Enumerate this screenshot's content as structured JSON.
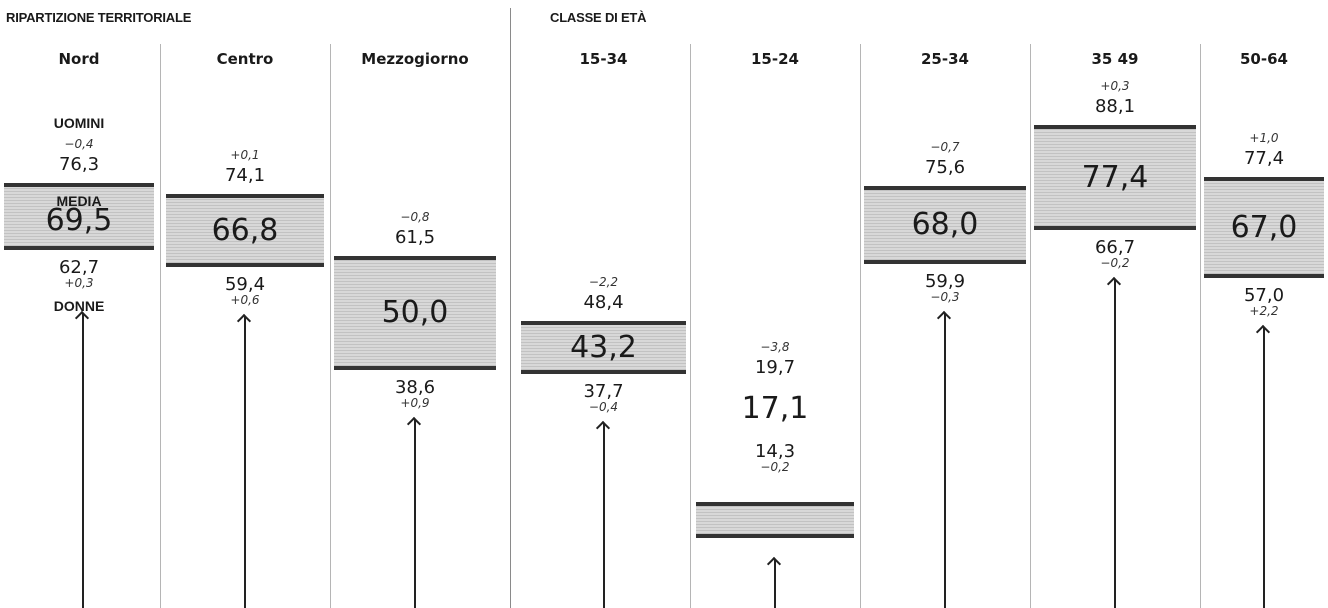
{
  "sections": {
    "territorial": "RIPARTIZIONE TERRITORIALE",
    "age": "CLASSE DI ETÀ"
  },
  "labels": {
    "men": "UOMINI",
    "average": "MEDIA",
    "women": "DONNE"
  },
  "colors": {
    "band_fill": "#d8d8d8",
    "band_edge": "#333333",
    "divider": "#b5b5b5"
  },
  "chart_data": {
    "type": "range",
    "scale": "shared vertical scale; band spans women (bottom) to men (top); average printed inside",
    "columns": [
      {
        "name": "Nord",
        "men": "76,3",
        "men_delta": "−0,4",
        "average": "69,5",
        "women": "62,7",
        "women_delta": "+0,3",
        "men_value": 76.3,
        "women_value": 62.7
      },
      {
        "name": "Centro",
        "men": "74,1",
        "men_delta": "+0,1",
        "average": "66,8",
        "women": "59,4",
        "women_delta": "+0,6",
        "men_value": 74.1,
        "women_value": 59.4
      },
      {
        "name": "Mezzogiorno",
        "men": "61,5",
        "men_delta": "−0,8",
        "average": "50,0",
        "women": "38,6",
        "women_delta": "+0,9",
        "men_value": 61.5,
        "women_value": 38.6
      },
      {
        "name": "15-34",
        "men": "48,4",
        "men_delta": "−2,2",
        "average": "43,2",
        "women": "37,7",
        "women_delta": "−0,4",
        "men_value": 48.4,
        "women_value": 37.7
      },
      {
        "name": "15-24",
        "men": "19,7",
        "men_delta": "−3,8",
        "average": "17,1",
        "women": "14,3",
        "women_delta": "−0,2",
        "men_value": 19.7,
        "women_value": 14.3
      },
      {
        "name": "25-34",
        "men": "75,6",
        "men_delta": "−0,7",
        "average": "68,0",
        "women": "59,9",
        "women_delta": "−0,3",
        "men_value": 75.6,
        "women_value": 59.9
      },
      {
        "name": "35 49",
        "men": "88,1",
        "men_delta": "+0,3",
        "average": "77,4",
        "women": "66,7",
        "women_delta": "−0,2",
        "men_value": 88.1,
        "women_value": 66.7
      },
      {
        "name": "50-64",
        "men": "77,4",
        "men_delta": "+1,0",
        "average": "67,0",
        "women": "57,0",
        "women_delta": "+2,2",
        "men_value": 77.4,
        "women_value": 57.0
      }
    ]
  }
}
